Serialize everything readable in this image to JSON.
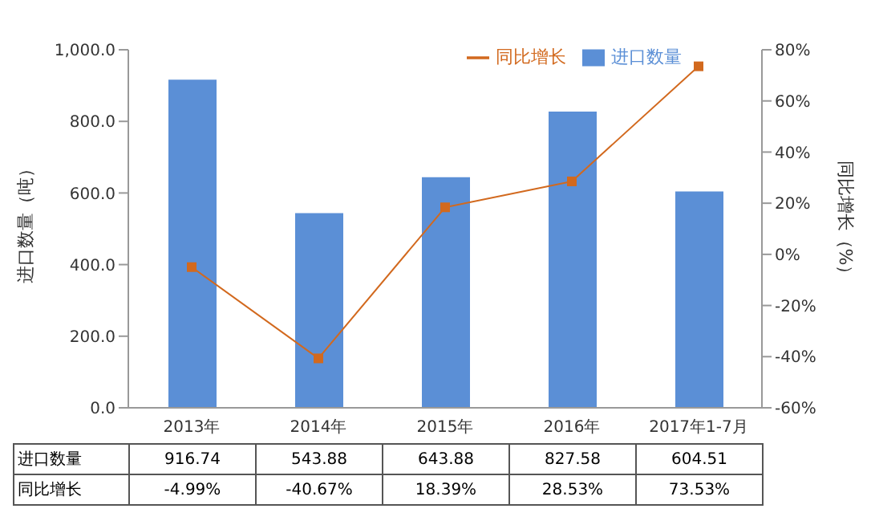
{
  "chart_data": {
    "type": "bar",
    "categories": [
      "2013年",
      "2014年",
      "2015年",
      "2016年",
      "2017年1-7月"
    ],
    "ylabel": "进口数量（吨）",
    "y2label": "同比增长（%）",
    "series": [
      {
        "name": "进口数量",
        "color": "#5b8fd6",
        "values": [
          916.74,
          543.88,
          643.88,
          827.58,
          604.51
        ],
        "value_labels": [
          "916.74",
          "543.88",
          "643.88",
          "827.58",
          "604.51"
        ]
      },
      {
        "name": "同比增长",
        "type": "line",
        "axis": "y2",
        "color": "#d2691e",
        "marker": "square",
        "values": [
          -4.99,
          -40.67,
          18.39,
          28.53,
          73.53
        ],
        "value_labels": [
          "-4.99%",
          "-40.67%",
          "18.39%",
          "28.53%",
          "73.53%"
        ]
      }
    ],
    "ylim": [
      0,
      1000
    ],
    "yticks": [
      {
        "value": 0,
        "label": "0.0"
      },
      {
        "value": 200,
        "label": "200.0"
      },
      {
        "value": 400,
        "label": "400.0"
      },
      {
        "value": 600,
        "label": "600.0"
      },
      {
        "value": 800,
        "label": "800.0"
      },
      {
        "value": 1000,
        "label": "1,000.0"
      }
    ],
    "y2lim": [
      -60,
      80
    ],
    "y2ticks": [
      {
        "value": -60,
        "label": "-60%"
      },
      {
        "value": -40,
        "label": "-40%"
      },
      {
        "value": -20,
        "label": "-20%"
      },
      {
        "value": 0,
        "label": "0%"
      },
      {
        "value": 20,
        "label": "20%"
      },
      {
        "value": 40,
        "label": "40%"
      },
      {
        "value": 60,
        "label": "60%"
      },
      {
        "value": 80,
        "label": "80%"
      }
    ],
    "legend": "top right",
    "grid": false
  }
}
